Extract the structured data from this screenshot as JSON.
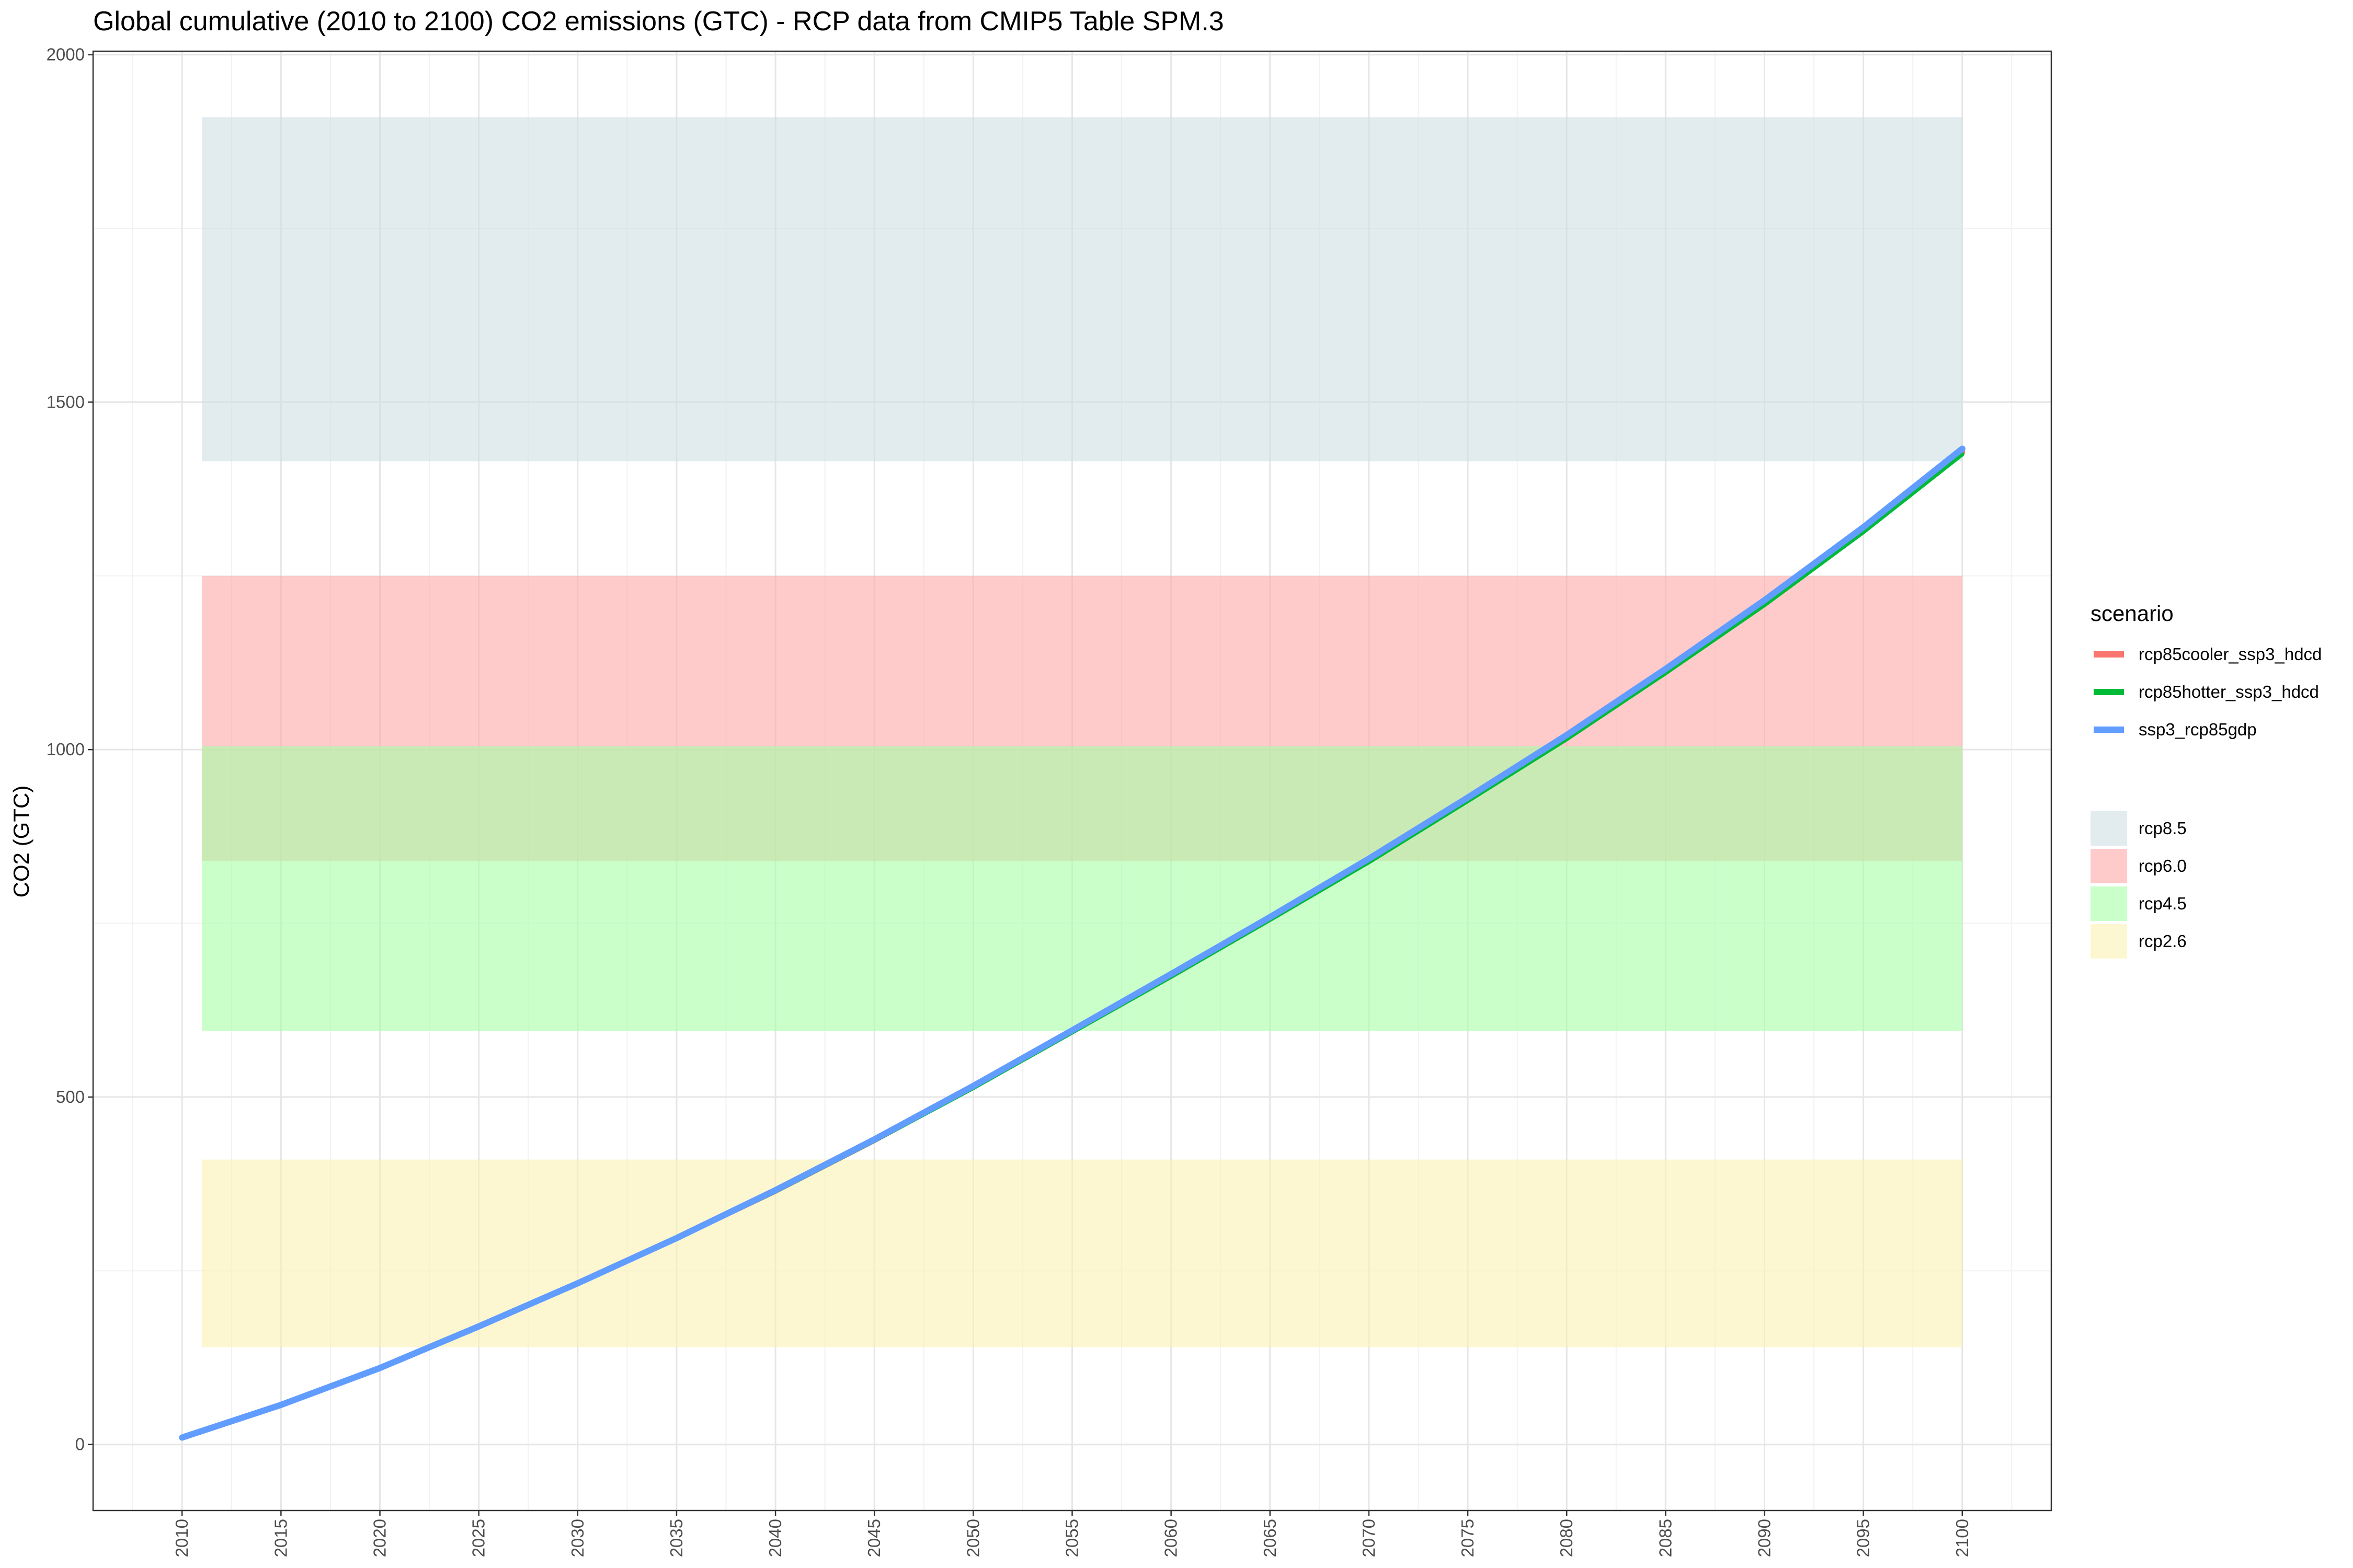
{
  "chart_data": {
    "type": "line",
    "title": "Global cumulative (2010 to 2100) CO2 emissions (GTC) - RCP data from CMIP5 Table SPM.3",
    "xlabel": "",
    "ylabel": "CO2 (GTC)",
    "xlim": [
      2005.5,
      2104.5
    ],
    "ylim": [
      -95,
      2005
    ],
    "x_ticks": [
      2010,
      2015,
      2020,
      2025,
      2030,
      2035,
      2040,
      2045,
      2050,
      2055,
      2060,
      2065,
      2070,
      2075,
      2080,
      2085,
      2090,
      2095,
      2100
    ],
    "y_ticks": [
      0,
      500,
      1000,
      1500,
      2000
    ],
    "grid": true,
    "legend_title": "scenario",
    "legend_position": "right",
    "series": [
      {
        "name": "rcp85cooler_ssp3_hdcd",
        "color": "#F8766D",
        "x": [
          2010,
          2015,
          2020,
          2025,
          2030,
          2035,
          2040,
          2045,
          2050,
          2055,
          2060,
          2065,
          2070,
          2075,
          2080,
          2085,
          2090,
          2095,
          2100
        ],
        "y": [
          10,
          57,
          110,
          170,
          232,
          297,
          365,
          438,
          515,
          595,
          675,
          757,
          840,
          928,
          1017,
          1112,
          1210,
          1315,
          1428
        ]
      },
      {
        "name": "rcp85hotter_ssp3_hdcd",
        "color": "#00BA38",
        "x": [
          2010,
          2015,
          2020,
          2025,
          2030,
          2035,
          2040,
          2045,
          2050,
          2055,
          2060,
          2065,
          2070,
          2075,
          2080,
          2085,
          2090,
          2095,
          2100
        ],
        "y": [
          10,
          57,
          110,
          169,
          231,
          296,
          364,
          437,
          513,
          593,
          673,
          755,
          838,
          926,
          1015,
          1110,
          1208,
          1313,
          1425
        ]
      },
      {
        "name": "ssp3_rcp85gdp",
        "color": "#619CFF",
        "x": [
          2010,
          2015,
          2020,
          2025,
          2030,
          2035,
          2040,
          2045,
          2050,
          2055,
          2060,
          2065,
          2070,
          2075,
          2080,
          2085,
          2090,
          2095,
          2100
        ],
        "y": [
          10,
          57,
          110,
          170,
          232,
          297,
          366,
          439,
          516,
          596,
          677,
          759,
          843,
          931,
          1021,
          1116,
          1215,
          1320,
          1433
        ]
      }
    ],
    "bands": [
      {
        "name": "rcp8.5",
        "x_range": [
          2011,
          2100
        ],
        "y_range": [
          1415,
          1910
        ],
        "color": "#cfe0e3"
      },
      {
        "name": "rcp6.0",
        "x_range": [
          2011,
          2100
        ],
        "y_range": [
          840,
          1250
        ],
        "color": "#ffa6a6"
      },
      {
        "name": "rcp4.5",
        "x_range": [
          2011,
          2100
        ],
        "y_range": [
          595,
          1005
        ],
        "color": "#a6ffa6"
      },
      {
        "name": "rcp2.6",
        "x_range": [
          2011,
          2100
        ],
        "y_range": [
          140,
          410
        ],
        "color": "#fcf2b3"
      }
    ]
  }
}
